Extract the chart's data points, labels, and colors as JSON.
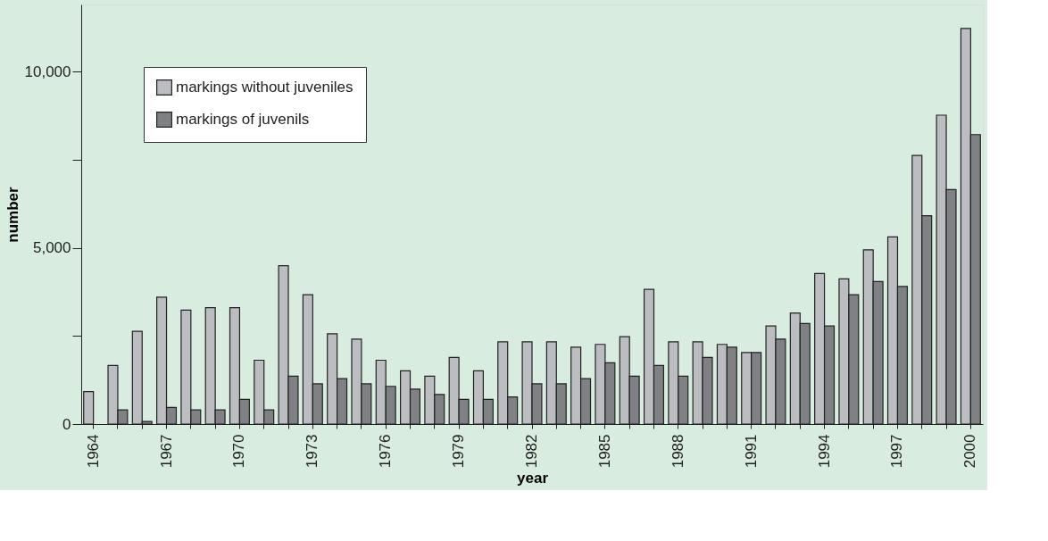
{
  "chart_data": {
    "type": "bar",
    "xlabel": "year",
    "ylabel": "number",
    "categories": [
      "1964",
      null,
      null,
      "1967",
      null,
      null,
      "1970",
      null,
      null,
      "1973",
      null,
      null,
      "1976",
      null,
      null,
      "1979",
      null,
      null,
      "1982",
      null,
      null,
      "1985",
      null,
      null,
      "1988",
      null,
      null,
      "1991",
      null,
      null,
      "1994",
      null,
      null,
      "1997",
      null,
      null,
      "2000"
    ],
    "series": [
      {
        "name": "markings without juveniles",
        "color": "#bcbdc1",
        "values": [
          920,
          1660,
          2630,
          3600,
          3230,
          3300,
          3300,
          1810,
          4490,
          3670,
          2560,
          2410,
          1810,
          1510,
          1360,
          1890,
          1510,
          2330,
          2330,
          2330,
          2180,
          2260,
          2480,
          3820,
          2330,
          2330,
          2260,
          2030,
          2780,
          3150,
          4270,
          4120,
          4940,
          5310,
          7620,
          8760,
          11220
        ]
      },
      {
        "name": "markings of juvenils",
        "color": "#808185",
        "values": [
          null,
          400,
          75,
          470,
          400,
          400,
          700,
          400,
          1360,
          1140,
          1290,
          1140,
          1070,
          990,
          840,
          700,
          700,
          770,
          1140,
          1140,
          1290,
          1740,
          1360,
          1660,
          1360,
          1890,
          2180,
          2030,
          2410,
          2850,
          2780,
          3670,
          4040,
          3900,
          5910,
          6650,
          8210
        ]
      }
    ],
    "ylim": [
      0,
      11900
    ],
    "yticks": [
      0,
      {
        "value": 2500,
        "label": null
      },
      {
        "value": 5000,
        "label": "5,000"
      },
      {
        "value": 7500,
        "label": null
      },
      {
        "value": 10000,
        "label": "10,000"
      }
    ],
    "grid": false,
    "legend": "top left"
  }
}
